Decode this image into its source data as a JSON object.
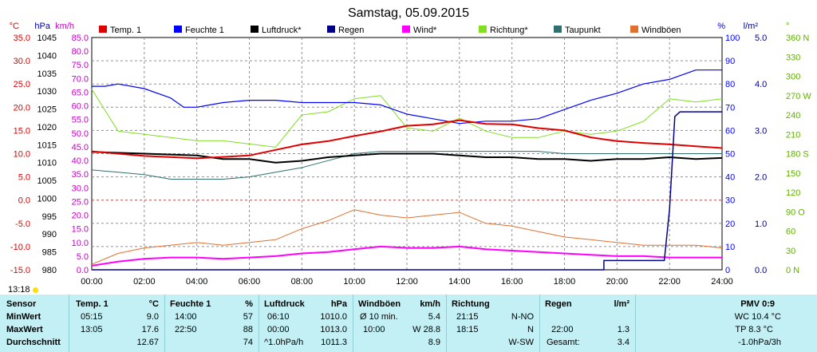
{
  "title": "Samstag, 05.09.2015",
  "colors": {
    "temp": "#e00000",
    "feuchte": "#0000ff",
    "luftdruck": "#000000",
    "regen": "#00008b",
    "wind": "#ff00ff",
    "richtung": "#80e020",
    "taupunkt": "#2f6f6f",
    "windboeen": "#e07030",
    "grid": "#909090",
    "panel": "#c2f0f5"
  },
  "legend": [
    {
      "label": "Temp. 1",
      "color": "#e00000"
    },
    {
      "label": "Feuchte 1",
      "color": "#0000ff"
    },
    {
      "label": "Luftdruck*",
      "color": "#000000"
    },
    {
      "label": "Regen",
      "color": "#00008b"
    },
    {
      "label": "Wind*",
      "color": "#ff00ff"
    },
    {
      "label": "Richtung*",
      "color": "#80e020"
    },
    {
      "label": "Taupunkt",
      "color": "#2f6f6f"
    },
    {
      "label": "Windböen",
      "color": "#e07030"
    }
  ],
  "chart_data": {
    "type": "line",
    "title": "Samstag, 05.09.2015",
    "x_labels": [
      "00:00",
      "02:00",
      "04:00",
      "06:00",
      "08:00",
      "10:00",
      "12:00",
      "14:00",
      "16:00",
      "18:00",
      "20:00",
      "22:00",
      "24:00"
    ],
    "axes": {
      "temp": {
        "unit": "°C",
        "min": -15,
        "max": 35,
        "ticks": [
          "35.0",
          "30.0",
          "25.0",
          "20.0",
          "15.0",
          "10.0",
          "5.0",
          "0.0",
          "-5.0",
          "-10.0",
          "-15.0"
        ]
      },
      "pressure": {
        "unit": "hPa",
        "min": 980,
        "max": 1045,
        "ticks": [
          "1045",
          "1040",
          "1035",
          "1030",
          "1025",
          "1020",
          "1015",
          "1010",
          "1005",
          "1000",
          "995",
          "990",
          "985",
          "980"
        ]
      },
      "wind": {
        "unit": "km/h",
        "min": 0,
        "max": 85,
        "ticks": [
          "85.0",
          "80.0",
          "75.0",
          "70.0",
          "65.0",
          "60.0",
          "55.0",
          "50.0",
          "45.0",
          "40.0",
          "35.0",
          "30.0",
          "25.0",
          "20.0",
          "15.0",
          "10.0",
          "5.0",
          "0.0"
        ]
      },
      "humidity": {
        "unit": "%",
        "min": 0,
        "max": 100,
        "ticks": [
          "100",
          "90",
          "80",
          "70",
          "60",
          "50",
          "40",
          "30",
          "20",
          "10",
          "0"
        ]
      },
      "rain": {
        "unit": "l/m²",
        "min": 0,
        "max": 5,
        "ticks": [
          "5.0",
          "4.0",
          "3.0",
          "2.0",
          "1.0",
          "0.0"
        ]
      },
      "direction": {
        "unit": "°",
        "min": 0,
        "max": 360,
        "ticks": [
          "360 N",
          "330",
          "300",
          "270 W",
          "240",
          "210",
          "180 S",
          "150",
          "120",
          "90 O",
          "60",
          "30",
          "0 N"
        ]
      }
    },
    "series": [
      {
        "name": "Temp. 1",
        "axis": "temp",
        "x": [
          0,
          2,
          4,
          5,
          6,
          7,
          8,
          9,
          10,
          11,
          12,
          13,
          14,
          15,
          16,
          17,
          18,
          19,
          20,
          21,
          22,
          23,
          24
        ],
        "y": [
          10.5,
          9.5,
          9.0,
          9.3,
          9.6,
          10.8,
          12.0,
          12.7,
          13.8,
          14.8,
          16.0,
          16.3,
          17.2,
          16.4,
          16.3,
          15.5,
          15.0,
          13.5,
          12.7,
          12.3,
          12.0,
          11.6,
          11.2
        ]
      },
      {
        "name": "Feuchte 1",
        "axis": "humidity",
        "x": [
          0,
          0.5,
          1,
          2,
          3,
          3.5,
          4,
          5,
          6,
          7,
          8,
          9,
          10,
          11,
          12,
          13,
          14,
          15,
          16,
          17,
          18,
          19,
          20,
          21,
          22,
          23,
          24
        ],
        "y": [
          79,
          79,
          80,
          78,
          74,
          70,
          70,
          72,
          73,
          73,
          72,
          72,
          72,
          71,
          67,
          65,
          63,
          64,
          64,
          65,
          69,
          73,
          76,
          80,
          82,
          86,
          86
        ]
      },
      {
        "name": "Luftdruck*",
        "axis": "pressure",
        "x": [
          0,
          2,
          4,
          5,
          6,
          7,
          8,
          9,
          10,
          11,
          12,
          13,
          14,
          15,
          16,
          17,
          18,
          19,
          20,
          21,
          22,
          23,
          24
        ],
        "y": [
          1013.0,
          1012.5,
          1012.0,
          1011.0,
          1011.0,
          1010.0,
          1010.5,
          1011.5,
          1012.0,
          1012.5,
          1012.5,
          1012.5,
          1012.0,
          1011.5,
          1011.5,
          1011.0,
          1011.0,
          1010.5,
          1011.0,
          1011.0,
          1011.5,
          1011.0,
          1011.3
        ]
      },
      {
        "name": "Regen",
        "axis": "rain",
        "x": [
          0,
          19.5,
          19.5,
          21.8,
          22.0,
          22.2,
          22.4,
          24
        ],
        "y": [
          0,
          0,
          0.2,
          0.2,
          1.3,
          3.3,
          3.4,
          3.4
        ]
      },
      {
        "name": "Wind*",
        "axis": "wind",
        "x": [
          0,
          1,
          2,
          3,
          4,
          5,
          6,
          7,
          8,
          9,
          10,
          11,
          12,
          13,
          14,
          15,
          16,
          17,
          18,
          19,
          20,
          21,
          22,
          23,
          24
        ],
        "y": [
          1.5,
          3.0,
          4.0,
          4.5,
          4.5,
          4.0,
          4.5,
          5.0,
          6.0,
          6.5,
          7.5,
          8.5,
          8.0,
          8.0,
          8.5,
          7.5,
          7.0,
          6.5,
          6.0,
          5.5,
          5.0,
          5.0,
          4.5,
          4.5,
          4.5
        ]
      },
      {
        "name": "Richtung*",
        "axis": "direction",
        "x": [
          0,
          1,
          2,
          3,
          4,
          5,
          6,
          7,
          8,
          9,
          10,
          11,
          12,
          13,
          14,
          15,
          16,
          17,
          18,
          19,
          20,
          21,
          22,
          23,
          24
        ],
        "y": [
          280,
          215,
          210,
          205,
          200,
          200,
          195,
          190,
          240,
          245,
          265,
          270,
          220,
          215,
          235,
          215,
          205,
          205,
          215,
          210,
          215,
          230,
          265,
          260,
          265
        ]
      },
      {
        "name": "Taupunkt",
        "axis": "temp",
        "x": [
          0,
          1,
          2,
          3,
          4,
          5,
          6,
          7,
          8,
          9,
          10,
          11,
          12,
          13,
          14,
          15,
          16,
          17,
          18,
          19,
          20,
          21,
          22,
          23,
          24
        ],
        "y": [
          6.5,
          6.0,
          5.5,
          4.5,
          4.5,
          4.5,
          5.0,
          6.0,
          7.0,
          8.5,
          10.0,
          10.5,
          10.5,
          10.5,
          10.5,
          10.5,
          10.5,
          10.5,
          10.0,
          10.0,
          10.0,
          10.0,
          10.0,
          10.0,
          10.0
        ]
      },
      {
        "name": "Windböen",
        "axis": "wind",
        "x": [
          0,
          1,
          2,
          3,
          4,
          5,
          6,
          7,
          8,
          9,
          10,
          11,
          12,
          13,
          14,
          15,
          16,
          17,
          18,
          19,
          20,
          21,
          22,
          23,
          24
        ],
        "y": [
          2,
          6,
          8,
          9,
          10,
          9,
          10,
          11,
          15,
          18,
          22,
          20,
          19,
          20,
          21,
          17,
          16,
          14,
          12,
          11,
          10,
          9,
          9,
          9,
          8
        ]
      }
    ]
  },
  "current_time": "13:18",
  "table": {
    "sensor": {
      "header": "Sensor",
      "rows": [
        "MinWert",
        "MaxWert",
        "Durchschnitt"
      ]
    },
    "temp": {
      "header": "Temp. 1",
      "unit": "°C",
      "rows": [
        [
          "05:15",
          "9.0"
        ],
        [
          "13:05",
          "17.6"
        ],
        [
          "",
          "12.67"
        ]
      ]
    },
    "feuchte": {
      "header": "Feuchte 1",
      "unit": "%",
      "rows": [
        [
          "14:00",
          "57"
        ],
        [
          "22:50",
          "88"
        ],
        [
          "",
          "74"
        ]
      ]
    },
    "luftdruck": {
      "header": "Luftdruck",
      "unit": "hPa",
      "rows": [
        [
          "06:10",
          "1010.0"
        ],
        [
          "00:00",
          "1013.0"
        ],
        [
          "^1.0hPa/h",
          "1011.3"
        ]
      ]
    },
    "windboeen": {
      "header": "Windböen",
      "unit": "km/h",
      "rows": [
        [
          "Ø 10 min.",
          "5.4"
        ],
        [
          "10:00",
          "W 28.8"
        ],
        [
          "",
          "8.9"
        ]
      ]
    },
    "richtung": {
      "header": "Richtung",
      "rows": [
        [
          "21:15",
          "N-NO"
        ],
        [
          "18:15",
          "N"
        ],
        [
          "",
          "W-SW"
        ]
      ]
    },
    "regen": {
      "header": "Regen",
      "unit": "l/m²",
      "rows": [
        [
          "",
          ""
        ],
        [
          "22:00",
          "1.3"
        ],
        [
          "Gesamt:",
          "3.4"
        ]
      ]
    },
    "pmv": {
      "header": "PMV 0:9",
      "rows": [
        "WC 10.4 °C",
        "TP 8.3 °C",
        "-1.0hPa/3h"
      ]
    }
  }
}
